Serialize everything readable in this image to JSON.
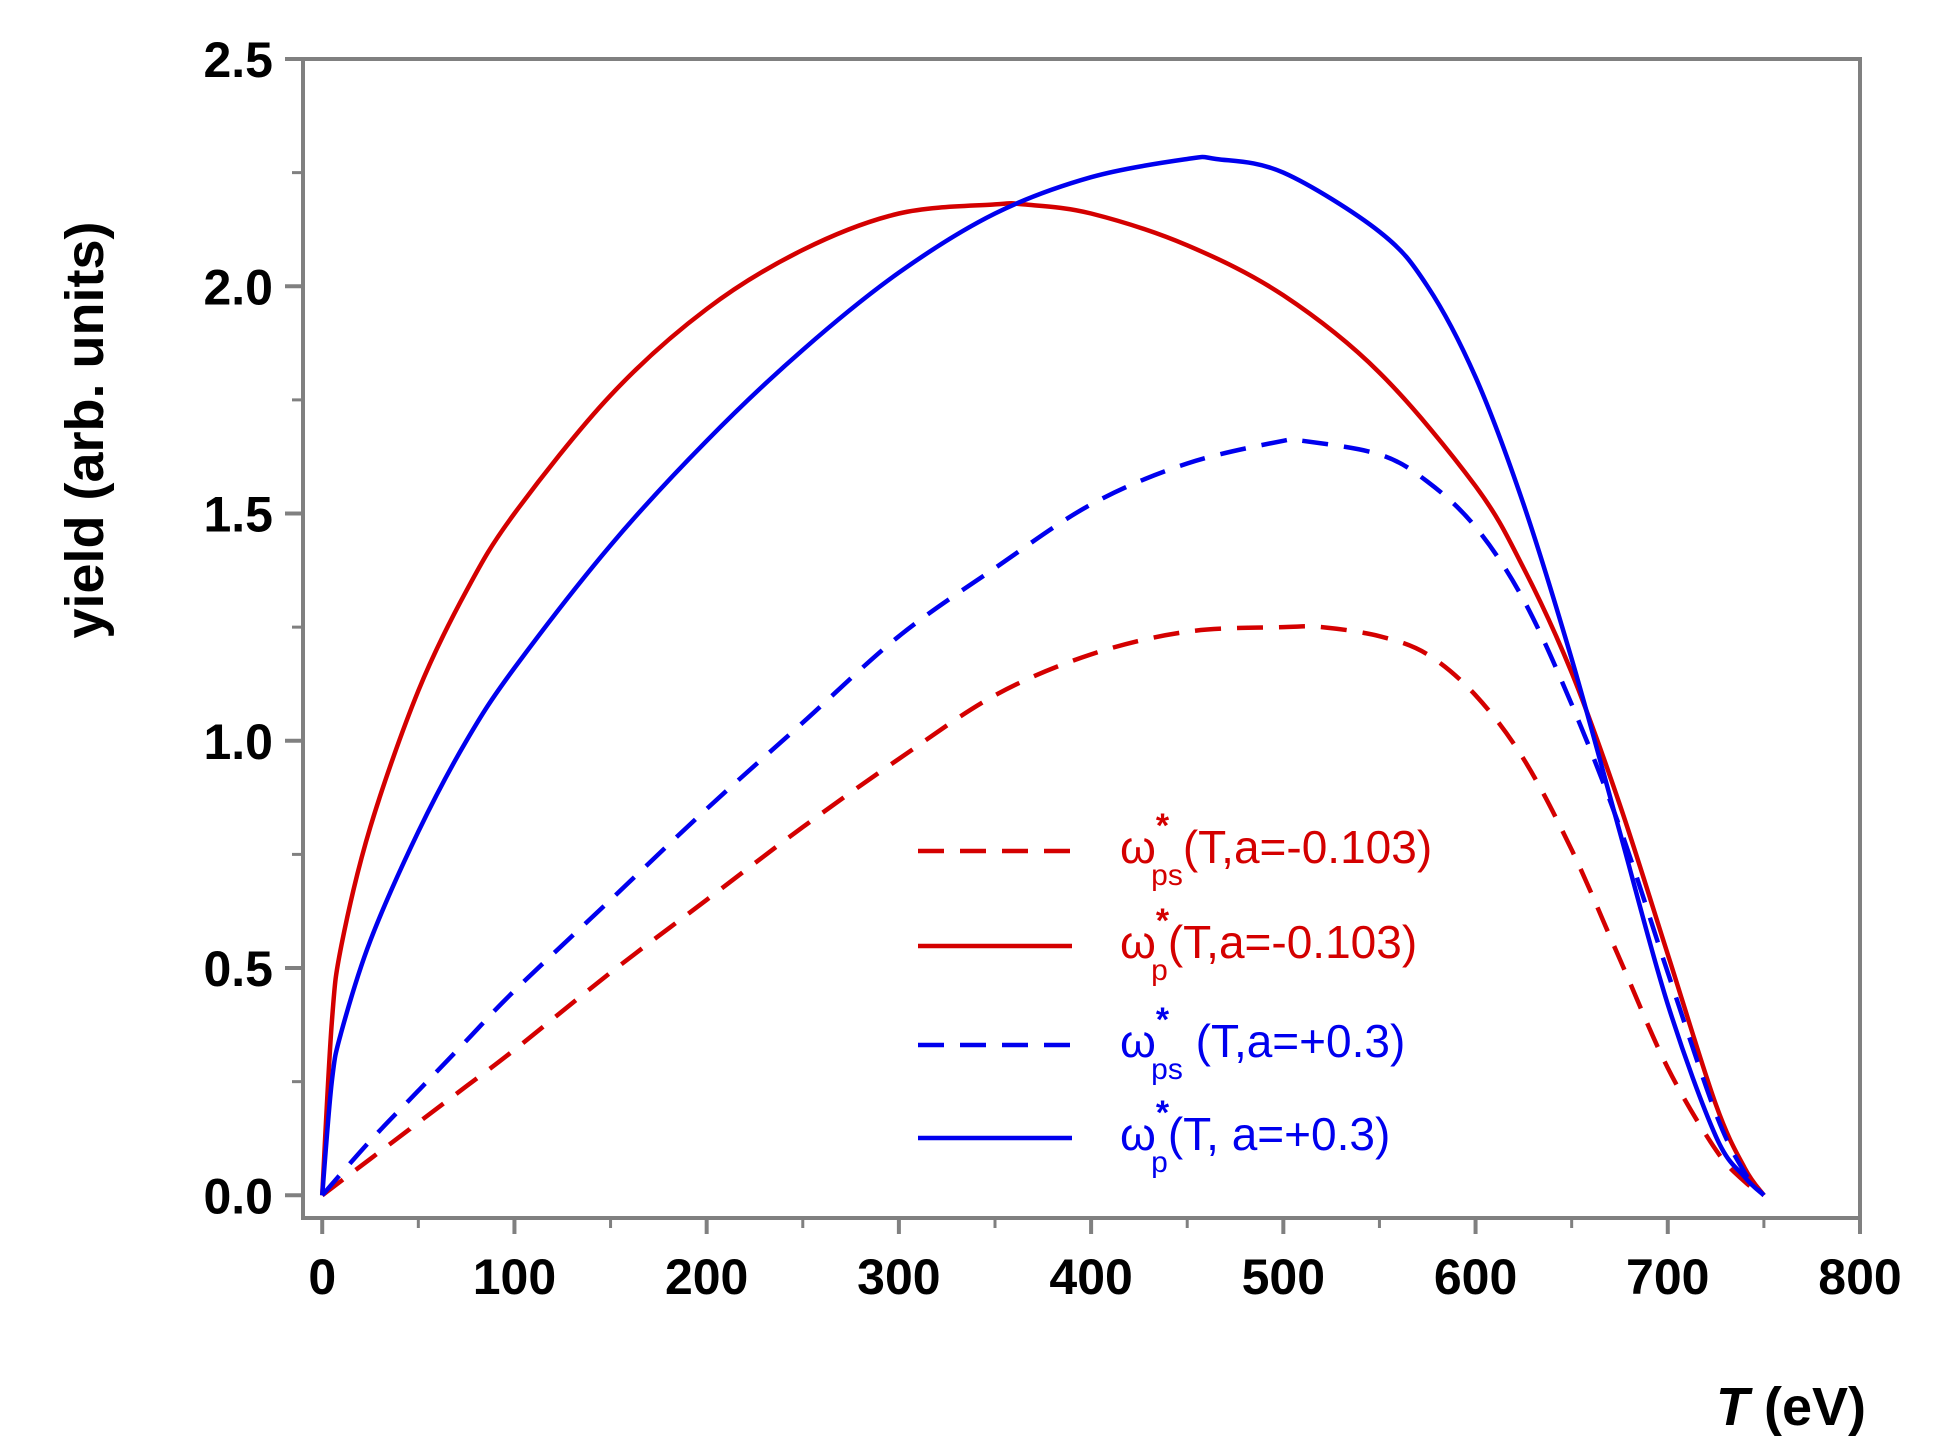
{
  "chart_data": {
    "type": "line",
    "title": "",
    "xlabel": {
      "italic": "T",
      "rest": " (eV)"
    },
    "ylabel": "yield (arb. units)",
    "xlim": [
      -10,
      800
    ],
    "ylim": [
      -0.05,
      2.5
    ],
    "xticks": [
      0,
      100,
      200,
      300,
      400,
      500,
      600,
      700,
      800
    ],
    "xtick_labels": [
      "0",
      "100",
      "200",
      "300",
      "400",
      "500",
      "600",
      "700",
      "800"
    ],
    "yticks": [
      0.0,
      0.5,
      1.0,
      1.5,
      2.0,
      2.5
    ],
    "ytick_labels": [
      "0.0",
      "0.5",
      "1.0",
      "1.5",
      "2.0",
      "2.5"
    ],
    "grid": false,
    "legend_position": "bottom-center",
    "series": [
      {
        "name": "omega_ps (T,a=-0.103)",
        "legend": {
          "symbol": "ω",
          "sub": "ps",
          "sup": "*",
          "rest": "(T,a=-0.103)"
        },
        "color": "#d40000",
        "dash": "dashed",
        "x": [
          0,
          25,
          50,
          75,
          100,
          150,
          200,
          250,
          300,
          350,
          400,
          450,
          500,
          520,
          550,
          575,
          600,
          625,
          650,
          675,
          700,
          725,
          740,
          750
        ],
        "y": [
          0.0,
          0.08,
          0.16,
          0.24,
          0.32,
          0.49,
          0.65,
          0.81,
          0.96,
          1.1,
          1.19,
          1.24,
          1.25,
          1.25,
          1.23,
          1.19,
          1.1,
          0.96,
          0.76,
          0.52,
          0.28,
          0.1,
          0.03,
          0.0
        ]
      },
      {
        "name": "omega_p (T,a=-0.103)",
        "legend": {
          "symbol": "ω",
          "sub": "p",
          "sup": "*",
          "rest": "(T,a=-0.103)"
        },
        "color": "#d40000",
        "dash": "solid",
        "x": [
          0,
          5,
          10,
          25,
          50,
          75,
          100,
          150,
          200,
          250,
          300,
          350,
          365,
          400,
          450,
          500,
          550,
          600,
          625,
          650,
          675,
          700,
          725,
          740,
          750
        ],
        "y": [
          0.0,
          0.38,
          0.55,
          0.81,
          1.11,
          1.33,
          1.5,
          1.76,
          1.95,
          2.08,
          2.16,
          2.18,
          2.18,
          2.16,
          2.09,
          1.98,
          1.81,
          1.56,
          1.38,
          1.15,
          0.86,
          0.53,
          0.2,
          0.06,
          0.0
        ]
      },
      {
        "name": "omega_ps (T,a=+0.3)",
        "legend": {
          "symbol": "ω",
          "sub": "ps",
          "sup": "*",
          "rest": " (T,a=+0.3)"
        },
        "color": "#0000ee",
        "dash": "dashed",
        "x": [
          0,
          25,
          50,
          75,
          100,
          150,
          200,
          250,
          300,
          350,
          400,
          450,
          500,
          510,
          550,
          575,
          600,
          625,
          650,
          675,
          700,
          725,
          740,
          750
        ],
        "y": [
          0.0,
          0.12,
          0.23,
          0.34,
          0.45,
          0.65,
          0.85,
          1.04,
          1.23,
          1.38,
          1.52,
          1.61,
          1.66,
          1.66,
          1.63,
          1.57,
          1.47,
          1.31,
          1.08,
          0.81,
          0.49,
          0.18,
          0.05,
          0.0
        ]
      },
      {
        "name": "omega_p (T,a=+0.3)",
        "legend": {
          "symbol": "ω",
          "sub": "p",
          "sup": "*",
          "rest": "(T, a=+0.3)"
        },
        "color": "#0000ee",
        "dash": "solid",
        "x": [
          0,
          5,
          10,
          25,
          50,
          75,
          100,
          150,
          200,
          250,
          300,
          350,
          400,
          450,
          465,
          500,
          550,
          575,
          600,
          625,
          650,
          675,
          700,
          725,
          740,
          750
        ],
        "y": [
          0.0,
          0.25,
          0.36,
          0.56,
          0.8,
          1.0,
          1.16,
          1.43,
          1.66,
          1.86,
          2.03,
          2.16,
          2.24,
          2.28,
          2.28,
          2.25,
          2.12,
          2.0,
          1.8,
          1.52,
          1.18,
          0.8,
          0.42,
          0.13,
          0.04,
          0.0
        ]
      }
    ]
  }
}
